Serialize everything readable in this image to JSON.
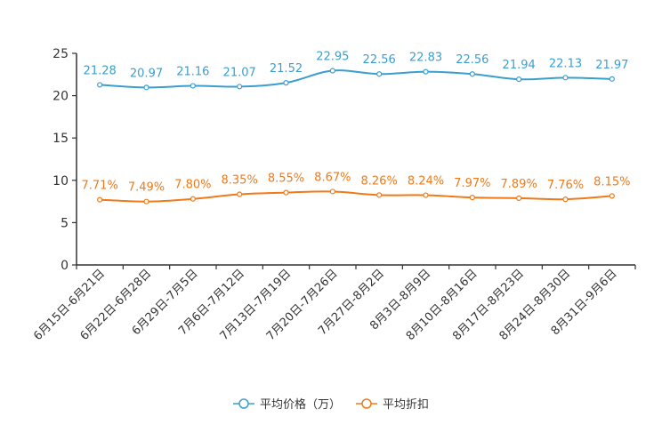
{
  "chart_data": {
    "type": "line",
    "title": "",
    "xlabel": "",
    "ylabel": "",
    "ylim": [
      0,
      25
    ],
    "yticks": [
      "0",
      "5",
      "10",
      "15",
      "20",
      "25"
    ],
    "categories": [
      "6月15日-6月21日",
      "6月22日-6月28日",
      "6月29日-7月5日",
      "7月6日-7月12日",
      "7月13日-7月19日",
      "7月20日-7月26日",
      "7月27日-8月2日",
      "8月3日-8月9日",
      "8月10日-8月16日",
      "8月17日-8月23日",
      "8月24日-8月30日",
      "8月31日-9月6日"
    ],
    "series": [
      {
        "name": "平均价格（万）",
        "color": "#3a9fd0",
        "values": [
          21.28,
          20.97,
          21.16,
          21.07,
          21.52,
          22.95,
          22.56,
          22.83,
          22.56,
          21.94,
          22.13,
          21.97
        ],
        "labels": [
          "21.28",
          "20.97",
          "21.16",
          "21.07",
          "21.52",
          "22.95",
          "22.56",
          "22.83",
          "22.56",
          "21.94",
          "22.13",
          "21.97"
        ]
      },
      {
        "name": "平均折扣",
        "color": "#f07a1a",
        "values": [
          7.71,
          7.49,
          7.8,
          8.35,
          8.55,
          8.67,
          8.26,
          8.24,
          7.97,
          7.89,
          7.76,
          8.15
        ],
        "labels": [
          "7.71%",
          "7.49%",
          "7.80%",
          "8.35%",
          "8.55%",
          "8.67%",
          "8.26%",
          "8.24%",
          "7.97%",
          "7.89%",
          "7.76%",
          "8.15%"
        ]
      }
    ],
    "legend_position": "bottom-center"
  }
}
